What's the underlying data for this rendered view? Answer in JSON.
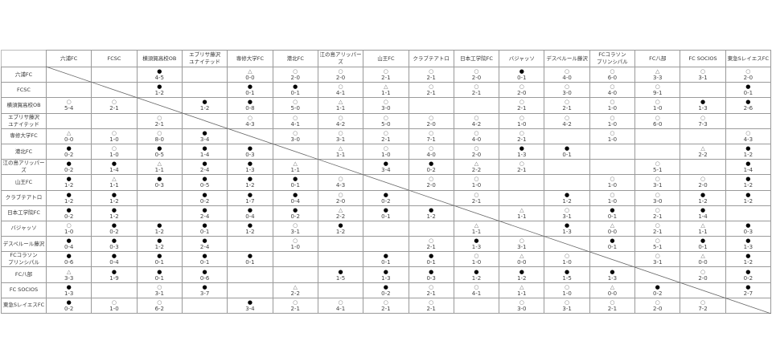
{
  "teams": [
    [
      "六浦FC"
    ],
    [
      "FCSC"
    ],
    [
      "横須賀高校OB"
    ],
    [
      "エブリサ藤沢",
      "ユナイテッド"
    ],
    [
      "専修大学FC"
    ],
    [
      "港北FC"
    ],
    [
      "江の島アリッパーズ"
    ],
    [
      "山王FC"
    ],
    [
      "クラブテアトロ"
    ],
    [
      "日本工学院FC"
    ],
    [
      "バジャッソ"
    ],
    [
      "デスペルール藤沢"
    ],
    [
      "FCコラソン",
      "プリンシパル"
    ],
    [
      "FC八部"
    ],
    [
      "FC SOCIOS"
    ],
    [
      "東急SレイエスFC"
    ]
  ],
  "marks": {
    "win": "○",
    "loss": "●",
    "draw": "△"
  },
  "results": [
    [
      null,
      null,
      [
        "●",
        "4-5"
      ],
      null,
      [
        "△",
        "0-0"
      ],
      [
        "○",
        "2-0"
      ],
      [
        "○",
        "2-0"
      ],
      [
        "○",
        "2-1"
      ],
      [
        "○",
        "2-1"
      ],
      [
        "○",
        "2-0"
      ],
      [
        "●",
        "0-1"
      ],
      [
        "○",
        "4-0"
      ],
      [
        "○",
        "6-0"
      ],
      [
        "△",
        "3-3"
      ],
      [
        "○",
        "3-1"
      ],
      [
        "○",
        "2-0"
      ]
    ],
    [
      null,
      null,
      [
        "●",
        "1-2"
      ],
      null,
      [
        "●",
        "0-1"
      ],
      [
        "●",
        "0-1"
      ],
      [
        "○",
        "4-1"
      ],
      [
        "△",
        "1-1"
      ],
      [
        "○",
        "2-1"
      ],
      [
        "○",
        "2-1"
      ],
      [
        "○",
        "2-0"
      ],
      [
        "○",
        "3-0"
      ],
      [
        "○",
        "4-0"
      ],
      [
        "○",
        "9-1"
      ],
      null,
      [
        "●",
        "0-1"
      ]
    ],
    [
      [
        "○",
        "5-4"
      ],
      [
        "○",
        "2-1"
      ],
      null,
      [
        "●",
        "1-2"
      ],
      [
        "●",
        "0-8"
      ],
      [
        "○",
        "5-0"
      ],
      [
        "△",
        "1-1"
      ],
      [
        "○",
        "3-0"
      ],
      null,
      null,
      [
        "○",
        "2-1"
      ],
      [
        "○",
        "2-1"
      ],
      [
        "○",
        "1-0"
      ],
      [
        "○",
        "1-0"
      ],
      [
        "●",
        "1-3"
      ],
      [
        "●",
        "2-6"
      ]
    ],
    [
      null,
      null,
      [
        "○",
        "2-1"
      ],
      null,
      [
        "○",
        "4-3"
      ],
      [
        "○",
        "4-1"
      ],
      [
        "○",
        "4-2"
      ],
      [
        "○",
        "5-0"
      ],
      [
        "○",
        "2-0"
      ],
      [
        "○",
        "4-2"
      ],
      [
        "○",
        "1-0"
      ],
      [
        "○",
        "4-2"
      ],
      [
        "○",
        "1-0"
      ],
      [
        "○",
        "6-0"
      ],
      [
        "○",
        "7-3"
      ],
      null
    ],
    [
      [
        "△",
        "0-0"
      ],
      [
        "○",
        "1-0"
      ],
      [
        "○",
        "8-0"
      ],
      [
        "●",
        "3-4"
      ],
      null,
      [
        "○",
        "3-0"
      ],
      [
        "○",
        "3-1"
      ],
      [
        "○",
        "2-1"
      ],
      [
        "○",
        "7-1"
      ],
      [
        "○",
        "4-0"
      ],
      [
        "○",
        "2-1"
      ],
      null,
      [
        "○",
        "1-0"
      ],
      null,
      null,
      [
        "○",
        "4-3"
      ]
    ],
    [
      [
        "●",
        "0-2"
      ],
      [
        "○",
        "1-0"
      ],
      [
        "●",
        "0-5"
      ],
      [
        "●",
        "1-4"
      ],
      [
        "●",
        "0-3"
      ],
      null,
      [
        "△",
        "1-1"
      ],
      [
        "○",
        "1-0"
      ],
      [
        "○",
        "4-0"
      ],
      [
        "○",
        "2-0"
      ],
      [
        "●",
        "1-3"
      ],
      [
        "●",
        "0-1"
      ],
      null,
      null,
      [
        "△",
        "2-2"
      ],
      [
        "●",
        "1-2"
      ]
    ],
    [
      [
        "●",
        "0-2"
      ],
      [
        "●",
        "1-4"
      ],
      [
        "△",
        "1-1"
      ],
      [
        "●",
        "2-4"
      ],
      [
        "●",
        "1-3"
      ],
      [
        "△",
        "1-1"
      ],
      null,
      [
        "●",
        "3-4"
      ],
      [
        "●",
        "0-2"
      ],
      [
        "△",
        "2-2"
      ],
      [
        "○",
        "2-1"
      ],
      null,
      null,
      [
        "○",
        "5-1"
      ],
      null,
      [
        "●",
        "1-4"
      ]
    ],
    [
      [
        "●",
        "1-2"
      ],
      [
        "△",
        "1-1"
      ],
      [
        "●",
        "0-3"
      ],
      [
        "●",
        "0-5"
      ],
      [
        "●",
        "1-2"
      ],
      [
        "●",
        "0-1"
      ],
      [
        "○",
        "4-3"
      ],
      null,
      [
        "○",
        "2-0"
      ],
      [
        "○",
        "1-0"
      ],
      null,
      null,
      [
        "○",
        "1-0"
      ],
      [
        "○",
        "3-1"
      ],
      [
        "○",
        "2-0"
      ],
      [
        "●",
        "1-2"
      ]
    ],
    [
      [
        "●",
        "1-2"
      ],
      [
        "●",
        "1-2"
      ],
      null,
      [
        "●",
        "0-2"
      ],
      [
        "●",
        "1-7"
      ],
      [
        "●",
        "0-4"
      ],
      [
        "○",
        "2-0"
      ],
      [
        "●",
        "0-2"
      ],
      null,
      [
        "○",
        "2-1"
      ],
      null,
      [
        "●",
        "1-2"
      ],
      [
        "○",
        "1-0"
      ],
      [
        "○",
        "3-0"
      ],
      [
        "●",
        "1-2"
      ],
      [
        "●",
        "1-2"
      ]
    ],
    [
      [
        "●",
        "0-2"
      ],
      [
        "●",
        "1-2"
      ],
      null,
      [
        "●",
        "2-4"
      ],
      [
        "●",
        "0-4"
      ],
      [
        "●",
        "0-2"
      ],
      [
        "△",
        "2-2"
      ],
      [
        "●",
        "0-1"
      ],
      [
        "●",
        "1-2"
      ],
      null,
      [
        "△",
        "1-1"
      ],
      [
        "○",
        "3-1"
      ],
      [
        "●",
        "0-1"
      ],
      [
        "○",
        "2-1"
      ],
      [
        "●",
        "1-4"
      ],
      null
    ],
    [
      [
        "○",
        "1-0"
      ],
      [
        "●",
        "0-2"
      ],
      [
        "●",
        "1-2"
      ],
      [
        "●",
        "0-1"
      ],
      [
        "●",
        "1-2"
      ],
      [
        "○",
        "3-1"
      ],
      [
        "●",
        "1-2"
      ],
      null,
      null,
      [
        "△",
        "1-1"
      ],
      null,
      [
        "●",
        "1-3"
      ],
      [
        "△",
        "0-0"
      ],
      [
        "○",
        "2-1"
      ],
      [
        "△",
        "1-1"
      ],
      [
        "●",
        "0-3"
      ]
    ],
    [
      [
        "●",
        "0-4"
      ],
      [
        "●",
        "0-3"
      ],
      [
        "●",
        "1-2"
      ],
      [
        "●",
        "2-4"
      ],
      null,
      [
        "○",
        "1-0"
      ],
      null,
      null,
      [
        "○",
        "2-1"
      ],
      [
        "●",
        "1-3"
      ],
      [
        "○",
        "3-1"
      ],
      null,
      [
        "●",
        "0-1"
      ],
      [
        "○",
        "5-1"
      ],
      [
        "●",
        "0-1"
      ],
      [
        "●",
        "1-3"
      ]
    ],
    [
      [
        "●",
        "0-6"
      ],
      [
        "●",
        "0-4"
      ],
      [
        "●",
        "0-1"
      ],
      [
        "●",
        "0-1"
      ],
      [
        "●",
        "0-1"
      ],
      null,
      null,
      [
        "●",
        "0-1"
      ],
      [
        "●",
        "0-1"
      ],
      [
        "○",
        "1-0"
      ],
      [
        "△",
        "0-0"
      ],
      [
        "○",
        "1-0"
      ],
      null,
      [
        "○",
        "3-1"
      ],
      [
        "△",
        "0-0"
      ],
      [
        "●",
        "1-2"
      ]
    ],
    [
      [
        "△",
        "3-3"
      ],
      [
        "●",
        "1-9"
      ],
      [
        "●",
        "0-1"
      ],
      [
        "●",
        "0-6"
      ],
      null,
      null,
      [
        "●",
        "1-5"
      ],
      [
        "●",
        "1-3"
      ],
      [
        "●",
        "0-3"
      ],
      [
        "●",
        "1-2"
      ],
      [
        "●",
        "1-2"
      ],
      [
        "●",
        "1-5"
      ],
      [
        "●",
        "1-3"
      ],
      null,
      [
        "○",
        "2-0"
      ],
      [
        "●",
        "0-2"
      ]
    ],
    [
      [
        "●",
        "1-3"
      ],
      null,
      [
        "○",
        "3-1"
      ],
      [
        "●",
        "3-7"
      ],
      null,
      [
        "△",
        "2-2"
      ],
      null,
      [
        "●",
        "0-2"
      ],
      [
        "○",
        "2-1"
      ],
      [
        "○",
        "4-1"
      ],
      [
        "△",
        "1-1"
      ],
      [
        "○",
        "1-0"
      ],
      [
        "△",
        "0-0"
      ],
      [
        "●",
        "0-2"
      ],
      null,
      [
        "●",
        "2-7"
      ]
    ],
    [
      [
        "●",
        "0-2"
      ],
      [
        "○",
        "1-0"
      ],
      [
        "○",
        "6-2"
      ],
      null,
      [
        "●",
        "3-4"
      ],
      [
        "○",
        "2-1"
      ],
      [
        "○",
        "4-1"
      ],
      [
        "○",
        "2-1"
      ],
      [
        "○",
        "2-1"
      ],
      null,
      [
        "○",
        "3-0"
      ],
      [
        "○",
        "3-1"
      ],
      [
        "○",
        "2-1"
      ],
      [
        "○",
        "2-0"
      ],
      [
        "○",
        "7-2"
      ],
      null
    ]
  ]
}
